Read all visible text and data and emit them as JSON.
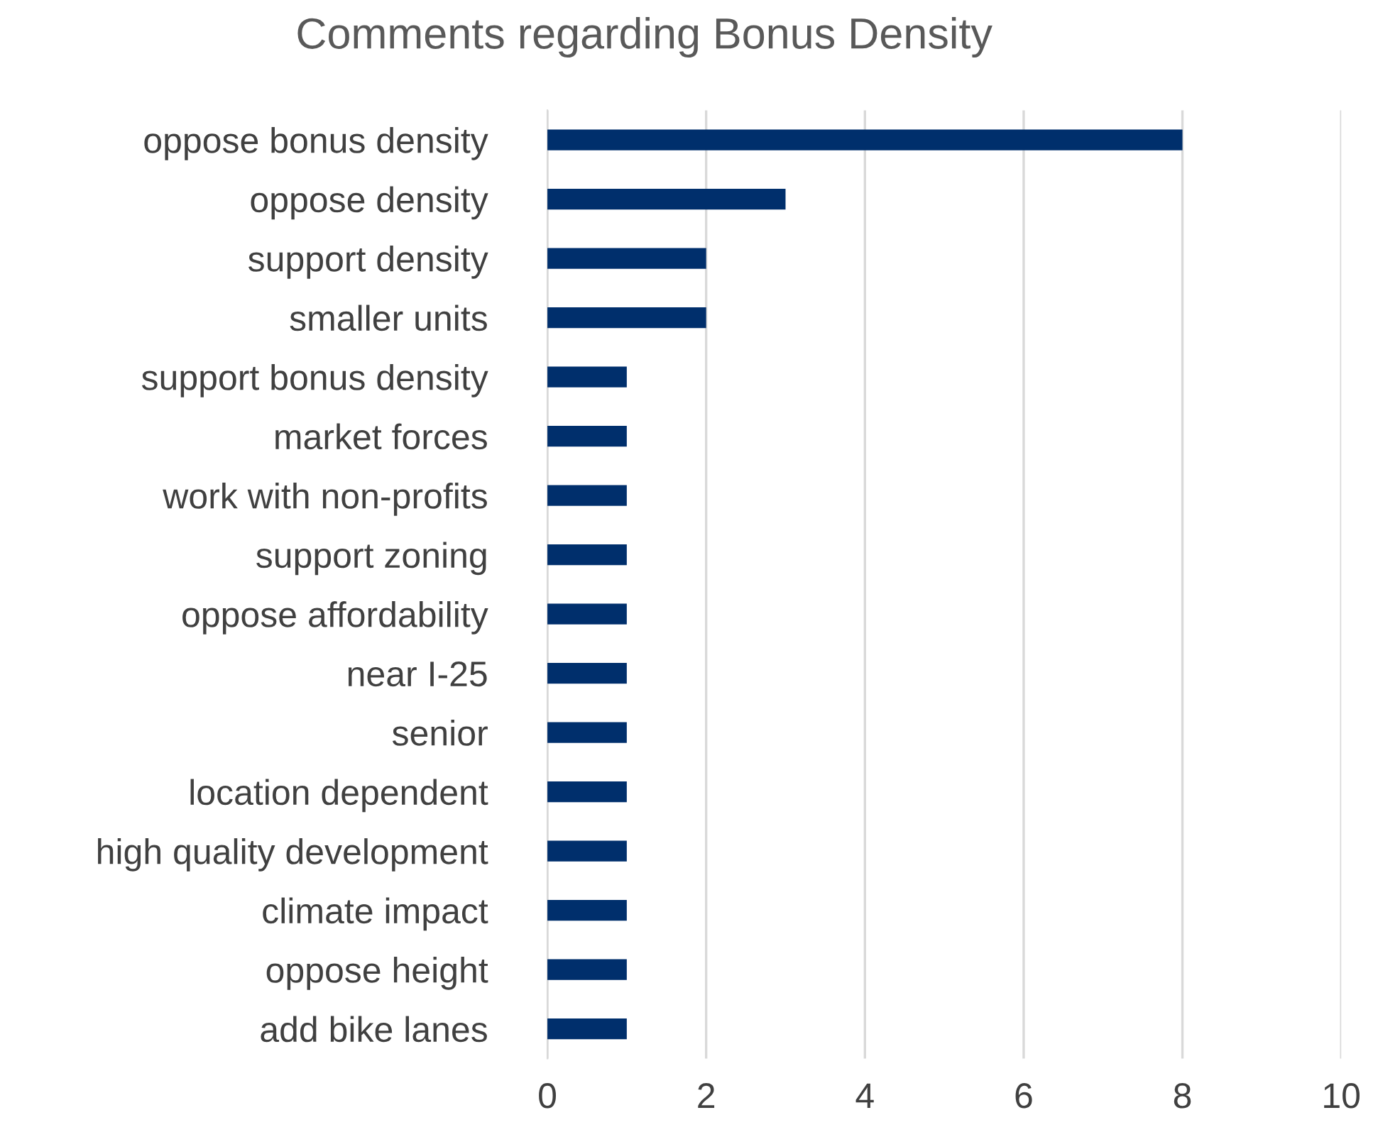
{
  "chart_data": {
    "type": "bar",
    "orientation": "horizontal",
    "title": "Comments regarding Bonus Density",
    "categories": [
      "oppose bonus density",
      "oppose density",
      "support density",
      "smaller units",
      "support bonus density",
      "market forces",
      "work with non-profits",
      "support zoning",
      "oppose affordability",
      "near I-25",
      "senior",
      "location dependent",
      "high quality development",
      "climate impact",
      "oppose height",
      "add bike lanes"
    ],
    "values": [
      8,
      3,
      2,
      2,
      1,
      1,
      1,
      1,
      1,
      1,
      1,
      1,
      1,
      1,
      1,
      1
    ],
    "color": "#002f6c",
    "xlim": [
      0,
      10
    ],
    "xticks": [
      0,
      2,
      4,
      6,
      8,
      10
    ],
    "grid": "x",
    "legend": false
  }
}
